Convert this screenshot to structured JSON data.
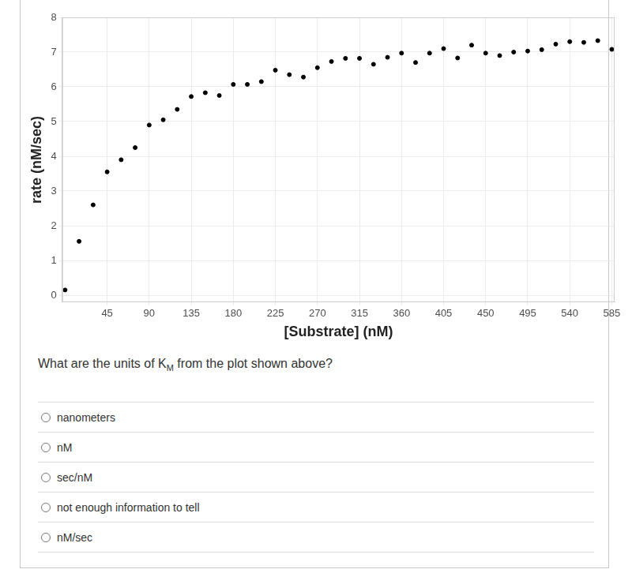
{
  "chart_data": {
    "type": "scatter",
    "x_label": "[Substrate] (nM)",
    "y_label": "rate (nM/sec)",
    "x": [
      0,
      15,
      30,
      45,
      60,
      75,
      90,
      105,
      120,
      135,
      150,
      165,
      180,
      195,
      210,
      225,
      240,
      255,
      270,
      285,
      300,
      315,
      330,
      345,
      360,
      375,
      390,
      405,
      420,
      435,
      450,
      465,
      480,
      495,
      510,
      525,
      540,
      555,
      570,
      585
    ],
    "values": [
      0.15,
      1.55,
      2.6,
      3.55,
      3.9,
      4.25,
      4.9,
      5.05,
      5.35,
      5.72,
      5.83,
      5.75,
      6.07,
      6.07,
      6.15,
      6.48,
      6.35,
      6.28,
      6.55,
      6.73,
      6.82,
      6.82,
      6.65,
      6.85,
      6.97,
      6.7,
      6.97,
      7.1,
      6.83,
      7.2,
      6.97,
      6.9,
      7.0,
      7.03,
      7.07,
      7.23,
      7.3,
      7.28,
      7.33,
      7.08
    ],
    "color": "#000000",
    "marker": "circle",
    "xlim": [
      -3,
      588
    ],
    "ylim": [
      -0.2,
      8
    ],
    "xticks": [
      45,
      90,
      135,
      180,
      225,
      270,
      315,
      360,
      405,
      450,
      495,
      540,
      585
    ],
    "yticks": [
      0,
      1,
      2,
      3,
      4,
      5,
      6,
      7,
      8
    ],
    "grid": true
  },
  "question": {
    "text_before": "What are the units of K",
    "subscript": "M",
    "text_after": " from the plot shown above?"
  },
  "options": [
    "nanometers",
    "nM",
    "sec/nM",
    "not enough information to tell",
    "nM/sec"
  ]
}
